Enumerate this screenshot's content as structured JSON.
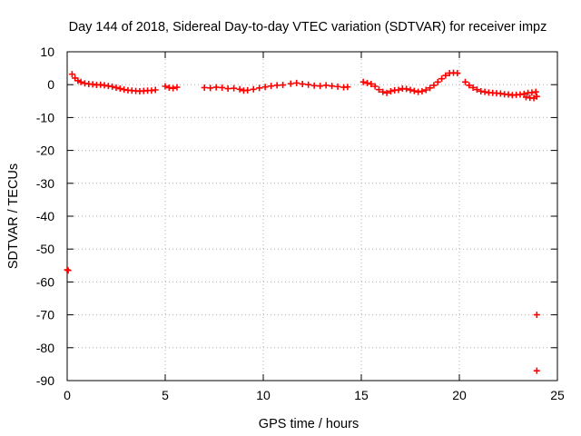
{
  "chart_data": {
    "type": "scatter",
    "title": "Day 144 of 2018, Sidereal Day-to-day VTEC variation (SDTVAR) for receiver impz",
    "xlabel": "GPS time / hours",
    "ylabel": "SDTVAR / TECUs",
    "xlim": [
      0,
      25
    ],
    "ylim": [
      -90,
      10
    ],
    "xticks": [
      0,
      5,
      10,
      15,
      20,
      25
    ],
    "yticks": [
      10,
      0,
      -10,
      -20,
      -30,
      -40,
      -50,
      -60,
      -70,
      -80,
      -90
    ],
    "grid": true,
    "marker": "+",
    "color": "#ff0000",
    "series": [
      {
        "name": "SDTVAR",
        "points": [
          [
            0.0,
            -56.3
          ],
          [
            0.05,
            -56.5
          ],
          [
            0.25,
            3.2
          ],
          [
            0.4,
            2.0
          ],
          [
            0.55,
            1.2
          ],
          [
            0.7,
            0.8
          ],
          [
            0.9,
            0.4
          ],
          [
            1.1,
            0.2
          ],
          [
            1.3,
            0.1
          ],
          [
            1.5,
            -0.1
          ],
          [
            1.7,
            0.0
          ],
          [
            1.9,
            -0.2
          ],
          [
            2.1,
            -0.4
          ],
          [
            2.3,
            -0.6
          ],
          [
            2.5,
            -0.9
          ],
          [
            2.7,
            -1.2
          ],
          [
            2.9,
            -1.5
          ],
          [
            3.1,
            -1.7
          ],
          [
            3.3,
            -1.8
          ],
          [
            3.5,
            -1.9
          ],
          [
            3.7,
            -2.0
          ],
          [
            3.9,
            -1.9
          ],
          [
            4.1,
            -1.8
          ],
          [
            4.3,
            -1.8
          ],
          [
            4.5,
            -1.6
          ],
          [
            5.0,
            -0.5
          ],
          [
            5.2,
            -0.9
          ],
          [
            5.4,
            -1.1
          ],
          [
            5.6,
            -0.8
          ],
          [
            7.0,
            -0.9
          ],
          [
            7.3,
            -1.0
          ],
          [
            7.6,
            -0.8
          ],
          [
            7.9,
            -0.9
          ],
          [
            8.2,
            -1.2
          ],
          [
            8.5,
            -1.1
          ],
          [
            8.8,
            -1.4
          ],
          [
            9.0,
            -1.8
          ],
          [
            9.2,
            -1.7
          ],
          [
            9.5,
            -1.4
          ],
          [
            9.8,
            -1.0
          ],
          [
            10.1,
            -0.7
          ],
          [
            10.4,
            -0.4
          ],
          [
            10.7,
            -0.2
          ],
          [
            11.0,
            -0.1
          ],
          [
            11.4,
            0.3
          ],
          [
            11.7,
            0.5
          ],
          [
            12.0,
            0.2
          ],
          [
            12.3,
            0.0
          ],
          [
            12.6,
            -0.3
          ],
          [
            12.9,
            -0.4
          ],
          [
            13.2,
            -0.2
          ],
          [
            13.5,
            -0.4
          ],
          [
            13.8,
            -0.6
          ],
          [
            14.1,
            -0.8
          ],
          [
            14.3,
            -0.7
          ],
          [
            15.1,
            0.8
          ],
          [
            15.3,
            0.5
          ],
          [
            15.5,
            0.2
          ],
          [
            15.7,
            -0.5
          ],
          [
            15.9,
            -1.5
          ],
          [
            16.1,
            -2.2
          ],
          [
            16.3,
            -2.5
          ],
          [
            16.5,
            -2.0
          ],
          [
            16.7,
            -1.7
          ],
          [
            16.9,
            -1.6
          ],
          [
            17.1,
            -1.2
          ],
          [
            17.3,
            -1.3
          ],
          [
            17.5,
            -1.6
          ],
          [
            17.7,
            -1.9
          ],
          [
            17.9,
            -2.2
          ],
          [
            18.1,
            -2.0
          ],
          [
            18.3,
            -1.6
          ],
          [
            18.5,
            -1.0
          ],
          [
            18.7,
            -0.2
          ],
          [
            18.9,
            0.8
          ],
          [
            19.1,
            1.8
          ],
          [
            19.3,
            2.8
          ],
          [
            19.5,
            3.5
          ],
          [
            19.7,
            3.6
          ],
          [
            19.9,
            3.5
          ],
          [
            20.3,
            0.8
          ],
          [
            20.5,
            -0.2
          ],
          [
            20.7,
            -0.9
          ],
          [
            20.9,
            -1.5
          ],
          [
            21.1,
            -2.0
          ],
          [
            21.3,
            -2.2
          ],
          [
            21.5,
            -2.4
          ],
          [
            21.7,
            -2.5
          ],
          [
            21.9,
            -2.6
          ],
          [
            22.1,
            -2.7
          ],
          [
            22.3,
            -2.9
          ],
          [
            22.5,
            -3.0
          ],
          [
            22.7,
            -3.2
          ],
          [
            22.9,
            -3.1
          ],
          [
            23.1,
            -3.0
          ],
          [
            23.3,
            -2.8
          ],
          [
            23.5,
            -2.5
          ],
          [
            23.7,
            -2.4
          ],
          [
            23.9,
            -2.2
          ],
          [
            23.4,
            -3.8
          ],
          [
            23.6,
            -4.0
          ],
          [
            23.8,
            -4.1
          ],
          [
            23.95,
            -3.6
          ],
          [
            23.95,
            -70.0
          ],
          [
            23.95,
            -87.0
          ]
        ]
      }
    ]
  }
}
